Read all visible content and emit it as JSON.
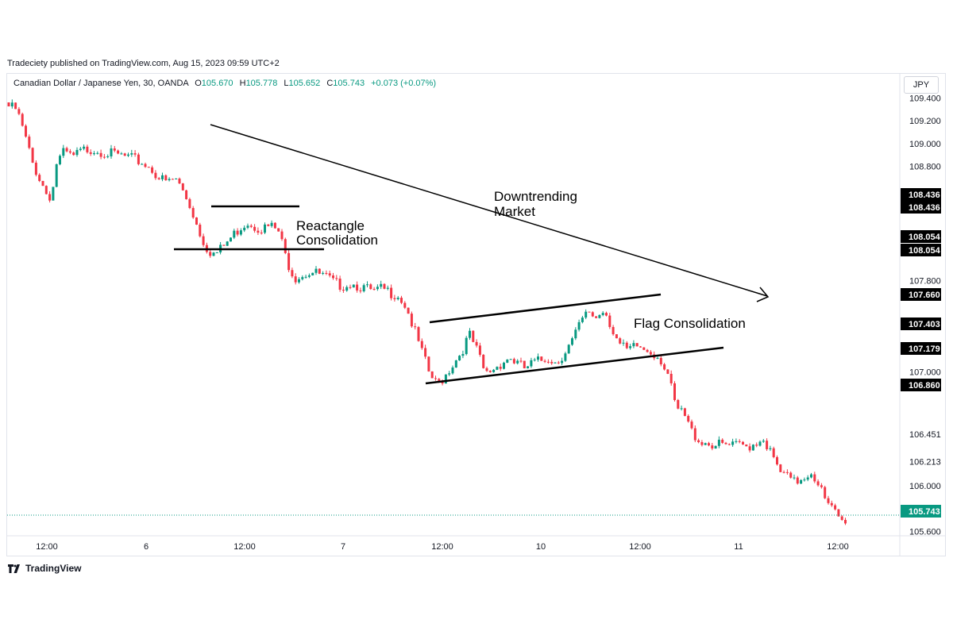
{
  "publisher_line": "Tradeciety published on TradingView.com, Aug 15, 2023 09:59 UTC+2",
  "legend": {
    "symbol": "Canadian Dollar / Japanese Yen, 30, OANDA",
    "open_label": "O",
    "open": "105.670",
    "high_label": "H",
    "high": "105.778",
    "low_label": "L",
    "low": "105.652",
    "close_label": "C",
    "close": "105.743",
    "change": "+0.073 (+0.07%)"
  },
  "currency_button": "JPY",
  "footer": {
    "brand": "TradingView",
    "icon": "tradingview-logo-icon"
  },
  "colors": {
    "up": "#089981",
    "down": "#f23645",
    "last_price": "#089981",
    "annotation": "#000000"
  },
  "chart_data": {
    "type": "candlestick",
    "title": "Canadian Dollar / Japanese Yen, 30, OANDA",
    "ylim": [
      105.5,
      109.5
    ],
    "y_ticks": [
      "109.400",
      "109.200",
      "109.000",
      "108.800",
      "107.800",
      "107.000",
      "106.451",
      "106.213",
      "106.000",
      "105.600"
    ],
    "x_ticks": [
      "12:00",
      "6",
      "12:00",
      "7",
      "12:00",
      "10",
      "12:00",
      "11",
      "12:00"
    ],
    "grid": false,
    "series": [
      {
        "type": "close_path",
        "points": [
          [
            0,
            109.35
          ],
          [
            10,
            109.32
          ],
          [
            20,
            109.1
          ],
          [
            30,
            108.85
          ],
          [
            40,
            108.7
          ],
          [
            50,
            108.55
          ],
          [
            55,
            108.6
          ],
          [
            60,
            108.85
          ],
          [
            70,
            108.95
          ],
          [
            80,
            108.9
          ],
          [
            90,
            108.95
          ],
          [
            100,
            108.98
          ],
          [
            110,
            108.97
          ],
          [
            120,
            108.95
          ],
          [
            130,
            108.93
          ],
          [
            140,
            108.92
          ],
          [
            150,
            108.9
          ],
          [
            160,
            108.88
          ],
          [
            170,
            108.85
          ],
          [
            180,
            108.8
          ],
          [
            190,
            108.72
          ],
          [
            200,
            108.68
          ],
          [
            210,
            108.72
          ],
          [
            220,
            108.6
          ],
          [
            230,
            108.45
          ],
          [
            240,
            108.25
          ],
          [
            250,
            108.1
          ],
          [
            260,
            108.05
          ],
          [
            270,
            108.12
          ],
          [
            280,
            108.2
          ],
          [
            290,
            108.28
          ],
          [
            300,
            108.34
          ],
          [
            310,
            108.3
          ],
          [
            320,
            108.28
          ],
          [
            330,
            108.3
          ],
          [
            340,
            108.25
          ],
          [
            350,
            108.0
          ],
          [
            360,
            107.85
          ],
          [
            370,
            107.88
          ],
          [
            380,
            107.9
          ],
          [
            390,
            107.88
          ],
          [
            400,
            107.85
          ],
          [
            410,
            107.8
          ],
          [
            420,
            107.78
          ],
          [
            430,
            107.8
          ],
          [
            440,
            107.78
          ],
          [
            450,
            107.75
          ],
          [
            460,
            107.72
          ],
          [
            470,
            107.75
          ],
          [
            480,
            107.72
          ],
          [
            490,
            107.7
          ],
          [
            500,
            107.6
          ],
          [
            510,
            107.4
          ],
          [
            520,
            107.2
          ],
          [
            530,
            107.0
          ],
          [
            540,
            106.9
          ],
          [
            550,
            107.0
          ],
          [
            560,
            107.1
          ],
          [
            570,
            107.2
          ],
          [
            580,
            107.35
          ],
          [
            590,
            107.2
          ],
          [
            600,
            107.0
          ],
          [
            610,
            107.05
          ],
          [
            620,
            107.1
          ],
          [
            630,
            107.15
          ],
          [
            640,
            107.1
          ],
          [
            650,
            107.05
          ],
          [
            660,
            107.1
          ],
          [
            670,
            107.12
          ],
          [
            680,
            107.15
          ],
          [
            690,
            107.1
          ],
          [
            700,
            107.2
          ],
          [
            710,
            107.3
          ],
          [
            720,
            107.45
          ],
          [
            730,
            107.55
          ],
          [
            740,
            107.5
          ],
          [
            750,
            107.58
          ],
          [
            760,
            107.4
          ],
          [
            770,
            107.25
          ],
          [
            780,
            107.2
          ],
          [
            790,
            107.25
          ],
          [
            800,
            107.22
          ],
          [
            810,
            107.2
          ],
          [
            820,
            107.15
          ],
          [
            830,
            107.0
          ],
          [
            840,
            106.7
          ],
          [
            850,
            106.65
          ],
          [
            860,
            106.5
          ],
          [
            870,
            106.42
          ],
          [
            880,
            106.4
          ],
          [
            890,
            106.38
          ],
          [
            900,
            106.38
          ],
          [
            910,
            106.37
          ],
          [
            920,
            106.38
          ],
          [
            930,
            106.37
          ],
          [
            940,
            106.4
          ],
          [
            950,
            106.45
          ],
          [
            960,
            106.3
          ],
          [
            970,
            106.15
          ],
          [
            980,
            106.1
          ],
          [
            990,
            106.05
          ],
          [
            1000,
            106.1
          ],
          [
            1010,
            106.15
          ],
          [
            1020,
            106.05
          ],
          [
            1030,
            105.85
          ],
          [
            1040,
            105.8
          ],
          [
            1050,
            105.7
          ],
          [
            1055,
            105.74
          ]
        ]
      }
    ],
    "price_labels": [
      {
        "value": "108.436",
        "bg": "#000000"
      },
      {
        "value": "108.436",
        "bg": "#000000"
      },
      {
        "value": "108.054",
        "bg": "#000000"
      },
      {
        "value": "108.054",
        "bg": "#000000"
      },
      {
        "value": "107.660",
        "bg": "#000000"
      },
      {
        "value": "107.403",
        "bg": "#000000"
      },
      {
        "value": "107.179",
        "bg": "#000000"
      },
      {
        "value": "106.860",
        "bg": "#000000"
      },
      {
        "value": "105.743",
        "bg": "#089981"
      }
    ],
    "annotations": [
      {
        "text": "Downtrending Market",
        "lines": [
          "Downtrending",
          "Market"
        ]
      },
      {
        "text": "Reactangle Consolidation",
        "lines": [
          "Reactangle",
          "Consolidation"
        ]
      },
      {
        "text": "Flag Consolidation",
        "lines": [
          "Flag Consolidation"
        ]
      }
    ]
  }
}
